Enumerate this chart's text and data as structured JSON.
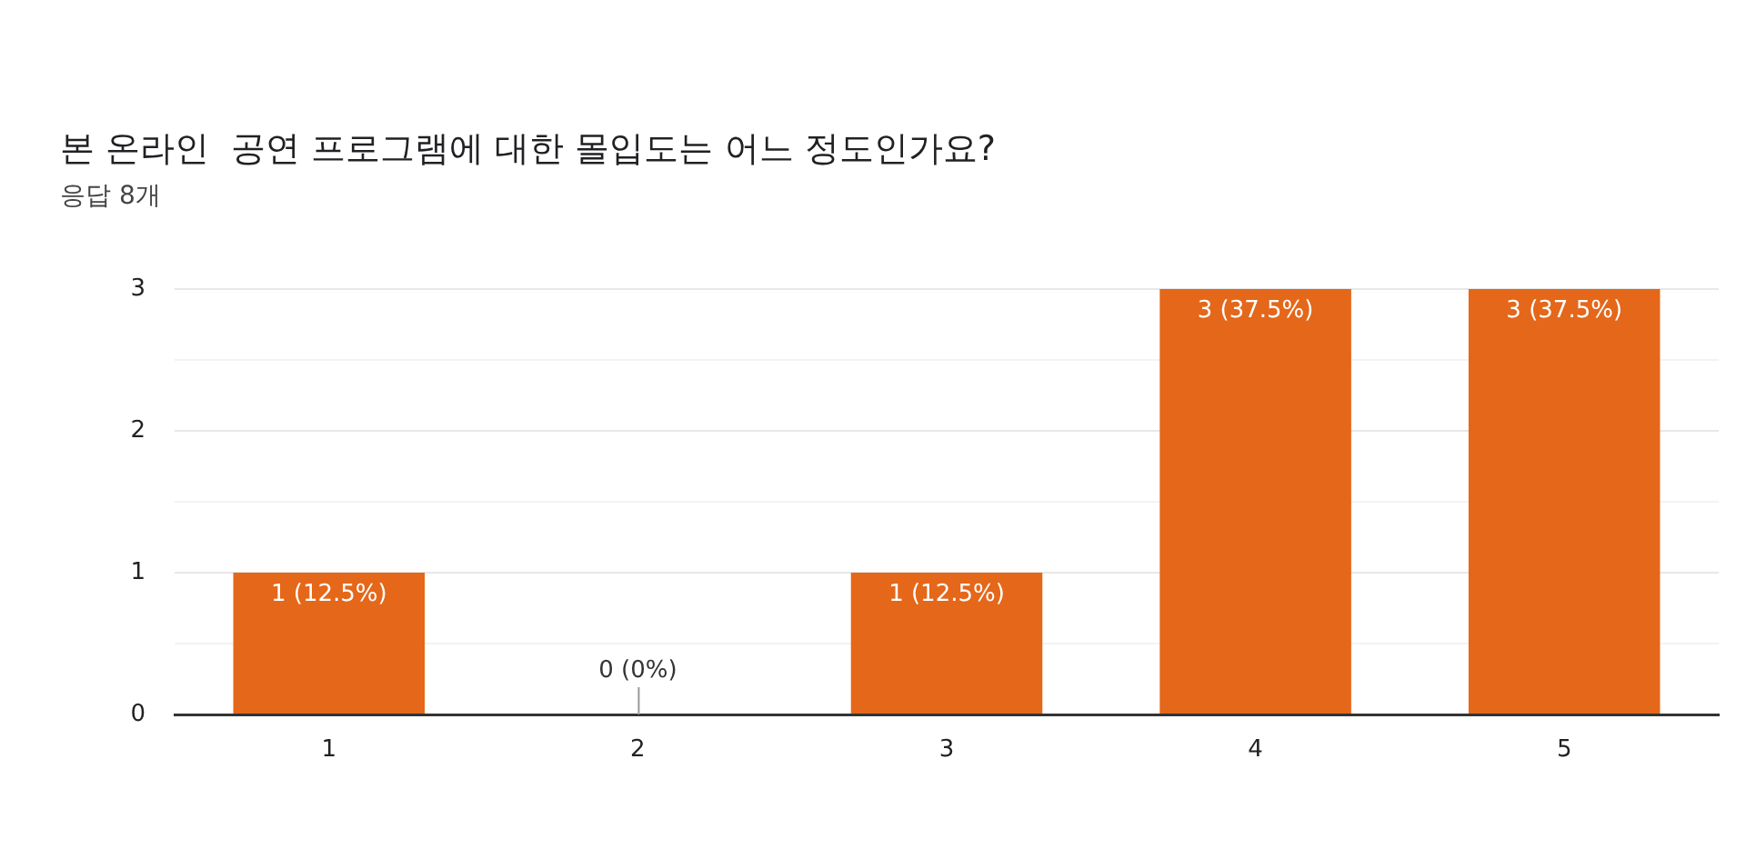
{
  "chart_data": {
    "type": "bar",
    "title": "본 온라인  공연 프로그램에 대한 몰입도는 어느 정도인가요?",
    "subtitle": "응답 8개",
    "categories": [
      "1",
      "2",
      "3",
      "4",
      "5"
    ],
    "values": [
      1,
      0,
      1,
      3,
      3
    ],
    "color": "#e4671a",
    "value_labels": [
      "1 (12.5%)",
      "0 (0%)",
      "1 (12.5%)",
      "3 (37.5%)",
      "3 (37.5%)"
    ],
    "ylim": [
      0,
      3
    ],
    "yticks": [
      0,
      {
        "value": 0.5,
        "label": null
      },
      1,
      {
        "value": 1.5,
        "label": null
      },
      2,
      {
        "value": 2.5,
        "label": null
      },
      3
    ],
    "grid": "y"
  }
}
